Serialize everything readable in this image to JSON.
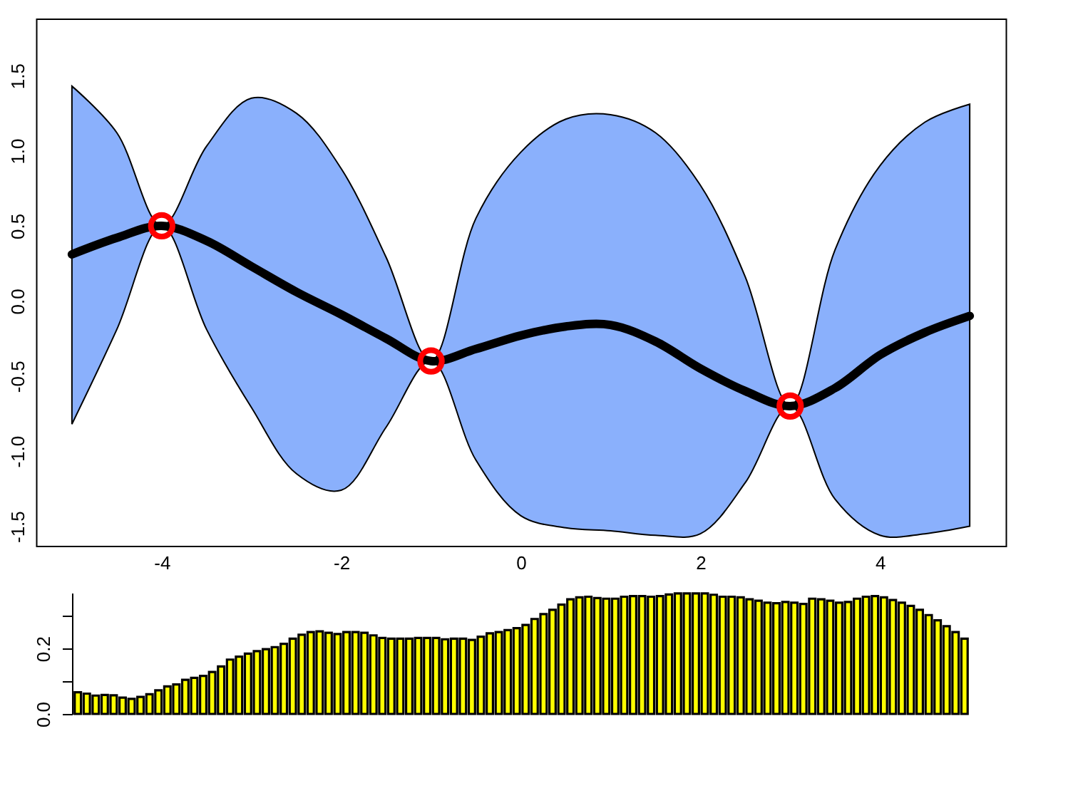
{
  "chart_data": [
    {
      "type": "line",
      "x": [
        -5,
        -4.5,
        -4,
        -3.5,
        -3,
        -2.5,
        -2,
        -1.5,
        -1,
        -0.5,
        0,
        0.5,
        1,
        1.5,
        2,
        2.5,
        3,
        3.5,
        4,
        4.5,
        5
      ],
      "xlim": [
        -5.4,
        5.4
      ],
      "xticks": [
        -4,
        -2,
        0,
        2,
        4
      ],
      "ylim": [
        -1.63,
        1.88
      ],
      "yticks": [
        -1.5,
        {
          "value": -1,
          "label": "-1.0"
        },
        -0.5,
        {
          "value": 0,
          "label": "0.0"
        },
        0.5,
        {
          "value": 1,
          "label": "1.0"
        },
        1.5
      ],
      "series": [
        {
          "type": "line",
          "color": "#000000",
          "values": [
            0.31,
            0.42,
            0.5,
            0.4,
            0.23,
            0.06,
            -0.09,
            -0.25,
            -0.4,
            -0.32,
            -0.23,
            -0.17,
            -0.16,
            -0.27,
            -0.45,
            -0.6,
            -0.7,
            -0.58,
            -0.36,
            -0.21,
            -0.1
          ],
          "lower": [
            -0.82,
            -0.19,
            0.5,
            -0.19,
            -0.71,
            -1.15,
            -1.26,
            -0.84,
            -0.4,
            -1.06,
            -1.43,
            -1.51,
            -1.53,
            -1.56,
            -1.55,
            -1.21,
            -0.7,
            -1.32,
            -1.56,
            -1.55,
            -1.5
          ],
          "upper": [
            1.43,
            1.12,
            0.5,
            1.03,
            1.35,
            1.25,
            0.88,
            0.29,
            -0.4,
            0.55,
            0.99,
            1.21,
            1.24,
            1.12,
            0.77,
            0.16,
            -0.7,
            0.34,
            0.9,
            1.19,
            1.31
          ]
        },
        {
          "type": "scatter",
          "color": "#ff0000",
          "marker": "circle",
          "x": [
            -4,
            -1,
            3
          ],
          "values": [
            0.5,
            -0.4,
            -0.7
          ]
        }
      ]
    },
    {
      "type": "bar",
      "color": "#ffff00",
      "tick_labels": "y",
      "ylim": [
        0,
        0.37
      ],
      "yticks": [
        {
          "value": 0,
          "label": "0.0"
        },
        {
          "value": 0.1,
          "label": null
        },
        {
          "value": 0.2,
          "label": "0.2"
        },
        {
          "value": 0.3,
          "label": null
        }
      ],
      "categories": [
        null,
        null,
        null,
        null,
        null,
        null,
        null,
        null,
        null,
        null,
        null,
        null,
        null,
        null,
        null,
        null,
        null,
        null,
        null,
        null,
        null,
        null,
        null,
        null,
        null,
        null,
        null,
        null,
        null,
        null,
        null,
        null,
        null,
        null,
        null,
        null,
        null,
        null,
        null,
        null,
        null,
        null,
        null,
        null,
        null,
        null,
        null,
        null,
        null,
        null,
        null,
        null,
        null,
        null,
        null,
        null,
        null,
        null,
        null,
        null,
        null,
        null,
        null,
        null,
        null,
        null,
        null,
        null,
        null,
        null,
        null,
        null,
        null,
        null,
        null,
        null,
        null,
        null,
        null,
        null,
        null,
        null,
        null,
        null,
        null,
        null,
        null,
        null,
        null,
        null,
        null,
        null,
        null,
        null,
        null,
        null,
        null,
        null,
        null,
        null
      ],
      "values": [
        0.066,
        0.062,
        0.056,
        0.058,
        0.057,
        0.05,
        0.046,
        0.052,
        0.06,
        0.072,
        0.084,
        0.09,
        0.104,
        0.11,
        0.116,
        0.128,
        0.145,
        0.166,
        0.175,
        0.184,
        0.192,
        0.198,
        0.204,
        0.214,
        0.23,
        0.242,
        0.25,
        0.252,
        0.248,
        0.244,
        0.25,
        0.25,
        0.248,
        0.24,
        0.232,
        0.23,
        0.23,
        0.23,
        0.232,
        0.232,
        0.232,
        0.228,
        0.23,
        0.23,
        0.226,
        0.236,
        0.246,
        0.25,
        0.256,
        0.262,
        0.272,
        0.29,
        0.305,
        0.318,
        0.334,
        0.35,
        0.356,
        0.358,
        0.354,
        0.352,
        0.352,
        0.358,
        0.36,
        0.36,
        0.358,
        0.36,
        0.365,
        0.368,
        0.368,
        0.368,
        0.368,
        0.364,
        0.358,
        0.358,
        0.356,
        0.35,
        0.346,
        0.34,
        0.338,
        0.342,
        0.34,
        0.336,
        0.352,
        0.35,
        0.346,
        0.34,
        0.342,
        0.352,
        0.358,
        0.36,
        0.356,
        0.348,
        0.34,
        0.33,
        0.318,
        0.302,
        0.286,
        0.268,
        0.25,
        0.23
      ]
    }
  ]
}
